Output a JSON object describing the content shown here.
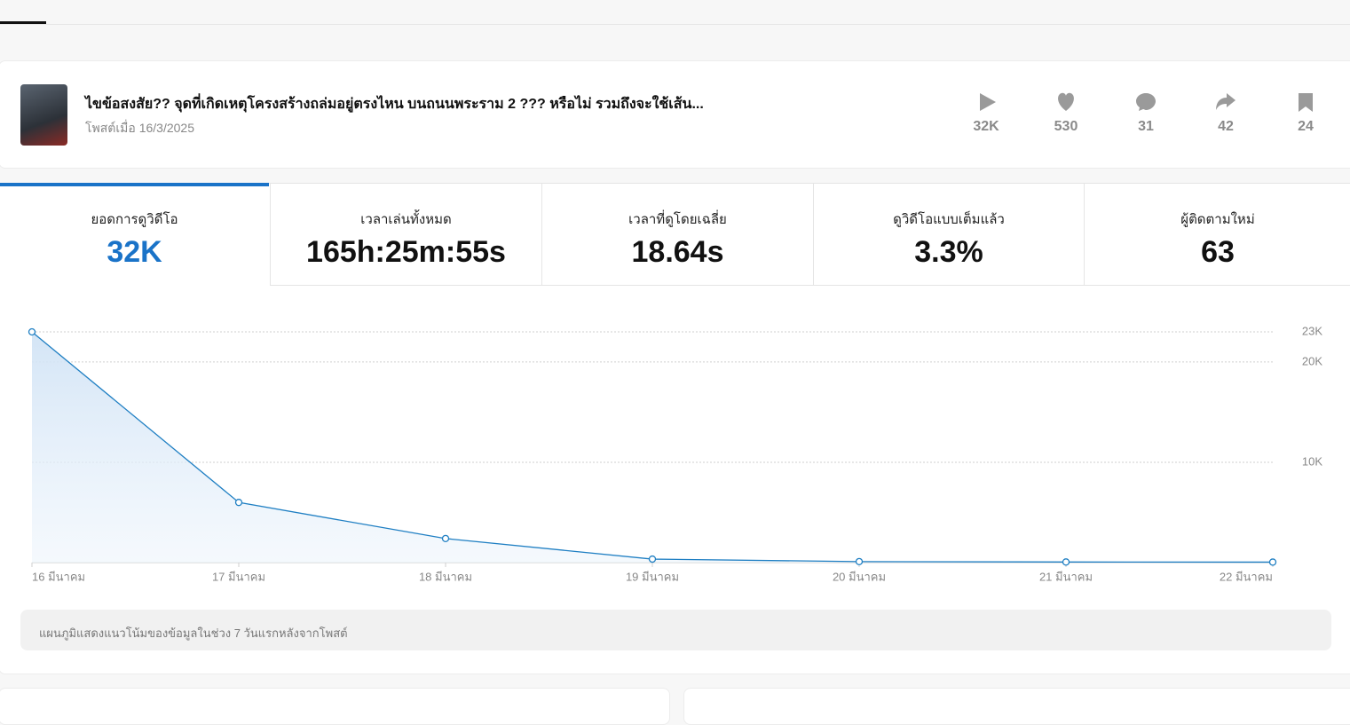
{
  "post": {
    "title": "ไขข้อสงสัย?? จุดที่เกิดเหตุโครงสร้างถล่มอยู่ตรงไหน บนถนนพระราม 2 ??? หรือไม่ รวมถึงจะใช้เส้น...",
    "date": "โพสต์เมื่อ 16/3/2025",
    "stats": [
      "32K",
      "530",
      "31",
      "42",
      "24"
    ]
  },
  "metrics": [
    {
      "label": "ยอดการดูวิดีโอ",
      "value": "32K"
    },
    {
      "label": "เวลาเล่นทั้งหมด",
      "value": "165h:25m:55s"
    },
    {
      "label": "เวลาที่ดูโดยเฉลี่ย",
      "value": "18.64s"
    },
    {
      "label": "ดูวิดีโอแบบเต็มแล้ว",
      "value": "3.3%"
    },
    {
      "label": "ผู้ติดตามใหม่",
      "value": "63"
    }
  ],
  "chart_data": {
    "type": "line",
    "categories": [
      "16 มีนาคม",
      "17 มีนาคม",
      "18 มีนาคม",
      "19 มีนาคม",
      "20 มีนาคม",
      "21 มีนาคม",
      "22 มีนาคม"
    ],
    "series": [
      {
        "name": "ยอดการดูวิดีโอ",
        "color": "#1f7fc3",
        "values": [
          23000,
          6000,
          2400,
          350,
          100,
          60,
          50
        ]
      }
    ],
    "ylim": [
      0,
      23000
    ],
    "yticks": [
      {
        "value": 23000,
        "label": "23K"
      },
      {
        "value": 20000,
        "label": "20K"
      },
      {
        "value": 10000,
        "label": "10K"
      }
    ],
    "grid": true
  },
  "note": "แผนภูมิแสดงแนวโน้มของข้อมูลในช่วง 7 วันแรกหลังจากโพสต์"
}
